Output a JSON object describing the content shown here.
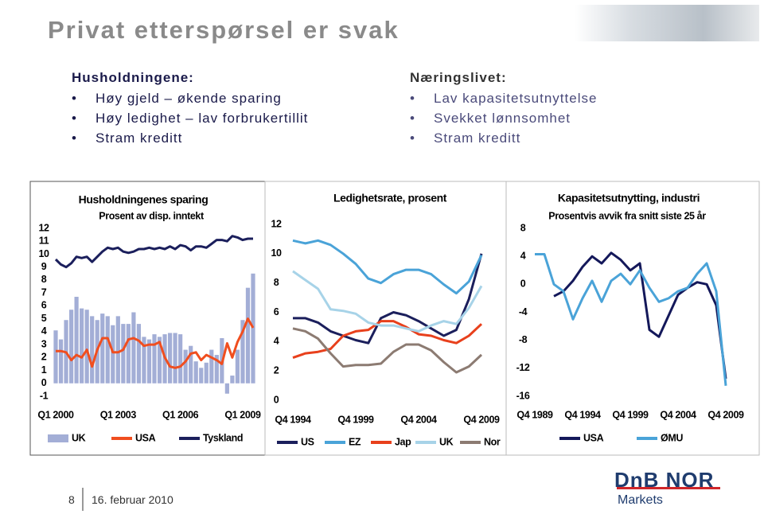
{
  "header": {
    "title": "Privat etterspørsel er svak"
  },
  "left_block": {
    "heading": "Husholdningene:",
    "bullets": [
      "Høy gjeld – økende sparing",
      "Høy ledighet – lav forbrukertillit",
      "Stram kreditt"
    ]
  },
  "right_block": {
    "heading": "Næringslivet:",
    "bullets": [
      "Lav kapasitetsutnyttelse",
      "Svekket lønnsomhet",
      "Stram kreditt"
    ]
  },
  "chart_data": [
    {
      "type": "bar",
      "title": "Husholdningenes sparing",
      "subtitle": "Prosent av disp. inntekt",
      "categories": [
        "Q1 2000",
        null,
        null,
        null,
        null,
        null,
        null,
        null,
        null,
        null,
        null,
        null,
        "Q1 2003",
        null,
        null,
        null,
        null,
        null,
        null,
        null,
        null,
        null,
        null,
        null,
        "Q1 2006",
        null,
        null,
        null,
        null,
        null,
        null,
        null,
        null,
        null,
        null,
        null,
        "Q1 2009",
        null,
        null
      ],
      "ylim": [
        -1,
        12
      ],
      "yticks": [
        -1,
        0,
        1,
        2,
        3,
        4,
        5,
        6,
        7,
        8,
        9,
        10,
        11,
        12
      ],
      "series": [
        {
          "name": "UK",
          "type": "bar",
          "color": "#a3aed6",
          "values": [
            4.1,
            3.4,
            4.9,
            5.7,
            6.7,
            5.8,
            5.7,
            5.2,
            4.9,
            5.4,
            5.2,
            4.5,
            5.2,
            4.6,
            4.6,
            5.5,
            4.6,
            3.6,
            3.4,
            3.8,
            3.6,
            3.8,
            3.9,
            3.9,
            3.8,
            2.6,
            2.9,
            1.7,
            1.2,
            1.6,
            2.6,
            2.2,
            3.5,
            -0.8,
            0.6,
            2.6,
            4.9,
            7.4,
            8.5
          ]
        },
        {
          "name": "USA",
          "type": "line",
          "color": "#f04e1f",
          "values": [
            2.5,
            2.5,
            2.4,
            1.8,
            2.2,
            2.0,
            2.6,
            1.3,
            2.6,
            3.5,
            3.5,
            2.4,
            2.4,
            2.6,
            3.4,
            3.5,
            3.3,
            2.9,
            3.0,
            3.0,
            3.2,
            2.0,
            1.3,
            1.2,
            1.3,
            1.7,
            2.3,
            2.4,
            1.8,
            2.2,
            2.0,
            1.8,
            1.5,
            3.1,
            2.0,
            3.2,
            4.0,
            5.0,
            4.3
          ]
        },
        {
          "name": "Tyskland",
          "type": "line",
          "color": "#1b1f5c",
          "values": [
            9.6,
            9.2,
            9.0,
            9.3,
            9.8,
            9.7,
            9.8,
            9.4,
            9.8,
            10.2,
            10.5,
            10.4,
            10.5,
            10.2,
            10.1,
            10.2,
            10.4,
            10.4,
            10.5,
            10.4,
            10.5,
            10.4,
            10.6,
            10.4,
            10.7,
            10.6,
            10.3,
            10.6,
            10.6,
            10.5,
            10.8,
            11.1,
            11.1,
            11.0,
            11.4,
            11.3,
            11.1,
            11.2,
            11.2
          ]
        }
      ]
    },
    {
      "type": "line",
      "title": "Ledighetsrate, prosent",
      "categories": [
        "Q4 1994",
        null,
        null,
        null,
        null,
        "Q4 1999",
        null,
        null,
        null,
        null,
        "Q4 2004",
        null,
        null,
        null,
        null,
        "Q4 2009"
      ],
      "ylim": [
        0,
        12
      ],
      "yticks": [
        0,
        2,
        4,
        6,
        8,
        10,
        12
      ],
      "series": [
        {
          "name": "US",
          "color": "#1b1f5c",
          "values": [
            5.6,
            5.6,
            5.3,
            4.7,
            4.4,
            4.1,
            3.9,
            5.6,
            6.0,
            5.8,
            5.4,
            4.9,
            4.4,
            4.8,
            6.9,
            10.0
          ]
        },
        {
          "name": "EZ",
          "color": "#4aa3d8",
          "values": [
            10.9,
            10.7,
            10.9,
            10.6,
            10.0,
            9.3,
            8.3,
            8.0,
            8.6,
            8.9,
            8.9,
            8.6,
            7.9,
            7.3,
            8.1,
            9.9
          ]
        },
        {
          "name": "Jap",
          "color": "#e8401c",
          "values": [
            2.9,
            3.2,
            3.3,
            3.5,
            4.4,
            4.7,
            4.8,
            5.4,
            5.4,
            5.0,
            4.5,
            4.4,
            4.1,
            3.9,
            4.4,
            5.2
          ]
        },
        {
          "name": "UK",
          "color": "#a7d3e8",
          "values": [
            8.8,
            8.2,
            7.6,
            6.2,
            6.1,
            5.9,
            5.3,
            5.1,
            5.1,
            4.9,
            4.7,
            5.1,
            5.4,
            5.2,
            6.3,
            7.8
          ]
        },
        {
          "name": "Nor",
          "color": "#8c7b72",
          "values": [
            4.9,
            4.7,
            4.2,
            3.2,
            2.3,
            2.4,
            2.4,
            2.5,
            3.3,
            3.8,
            3.8,
            3.4,
            2.6,
            1.9,
            2.3,
            3.1
          ]
        }
      ]
    },
    {
      "type": "line",
      "title": "Kapasitetsutnytting, industri",
      "subtitle": "Prosentvis avvik fra snitt siste 25 år",
      "categories": [
        "Q4 1989",
        null,
        null,
        null,
        null,
        "Q4 1994",
        null,
        null,
        null,
        null,
        "Q4 1999",
        null,
        null,
        null,
        null,
        "Q4 2004",
        null,
        null,
        null,
        null,
        "Q4 2009"
      ],
      "ylim": [
        -16,
        8
      ],
      "yticks": [
        -16,
        -12,
        -8,
        -4,
        0,
        4,
        8
      ],
      "series": [
        {
          "name": "USA",
          "color": "#14185a",
          "values": [
            null,
            null,
            -1.7,
            -1.0,
            0.5,
            2.5,
            4.0,
            3.0,
            4.5,
            3.5,
            2.0,
            3.0,
            -6.5,
            -7.5,
            -4.5,
            -1.5,
            -0.5,
            0.3,
            0,
            -3.0,
            -13.5
          ]
        },
        {
          "name": "ØMU",
          "color": "#4aa3d8",
          "values": [
            4.3,
            4.3,
            0,
            -1.0,
            -5.0,
            -2.0,
            0.5,
            -2.5,
            0.5,
            1.5,
            0,
            2.0,
            -0.5,
            -2.5,
            -2.0,
            -1.0,
            -0.5,
            1.5,
            3.0,
            -1.0,
            -14.5
          ]
        }
      ]
    }
  ],
  "footer": {
    "page": "8",
    "date": "16. februar 2010",
    "logo": "DnB NOR",
    "logo_sub": "Markets"
  }
}
